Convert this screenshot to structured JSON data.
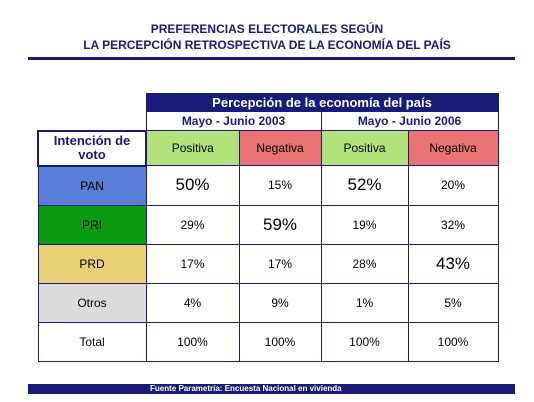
{
  "header": {
    "title_line1": "PREFERENCIAS ELECTORALES SEGÚN",
    "title_line2": "LA PERCEPCIÓN RETROSPECTIVA DE LA ECONOMÍA DEL PAÍS"
  },
  "table": {
    "group_header": "Percepción de la economía del país",
    "periods": [
      "Mayo - Junio 2003",
      "Mayo - Junio 2006"
    ],
    "row_header": "Intención de voto",
    "columns": [
      "Positiva",
      "Negativa",
      "Positiva",
      "Negativa"
    ],
    "rows": [
      [
        "PAN",
        "50%",
        "15%",
        "52%",
        "20%"
      ],
      [
        "PRI",
        "29%",
        "59%",
        "19%",
        "32%"
      ],
      [
        "PRD",
        "17%",
        "17%",
        "28%",
        "43%"
      ],
      [
        "Otros",
        "4%",
        "9%",
        "1%",
        "5%"
      ],
      [
        "Total",
        "100%",
        "100%",
        "100%",
        "100%"
      ]
    ]
  },
  "footer": {
    "source": "Fuente Parametría: Encuesta Nacional en vivienda"
  }
}
